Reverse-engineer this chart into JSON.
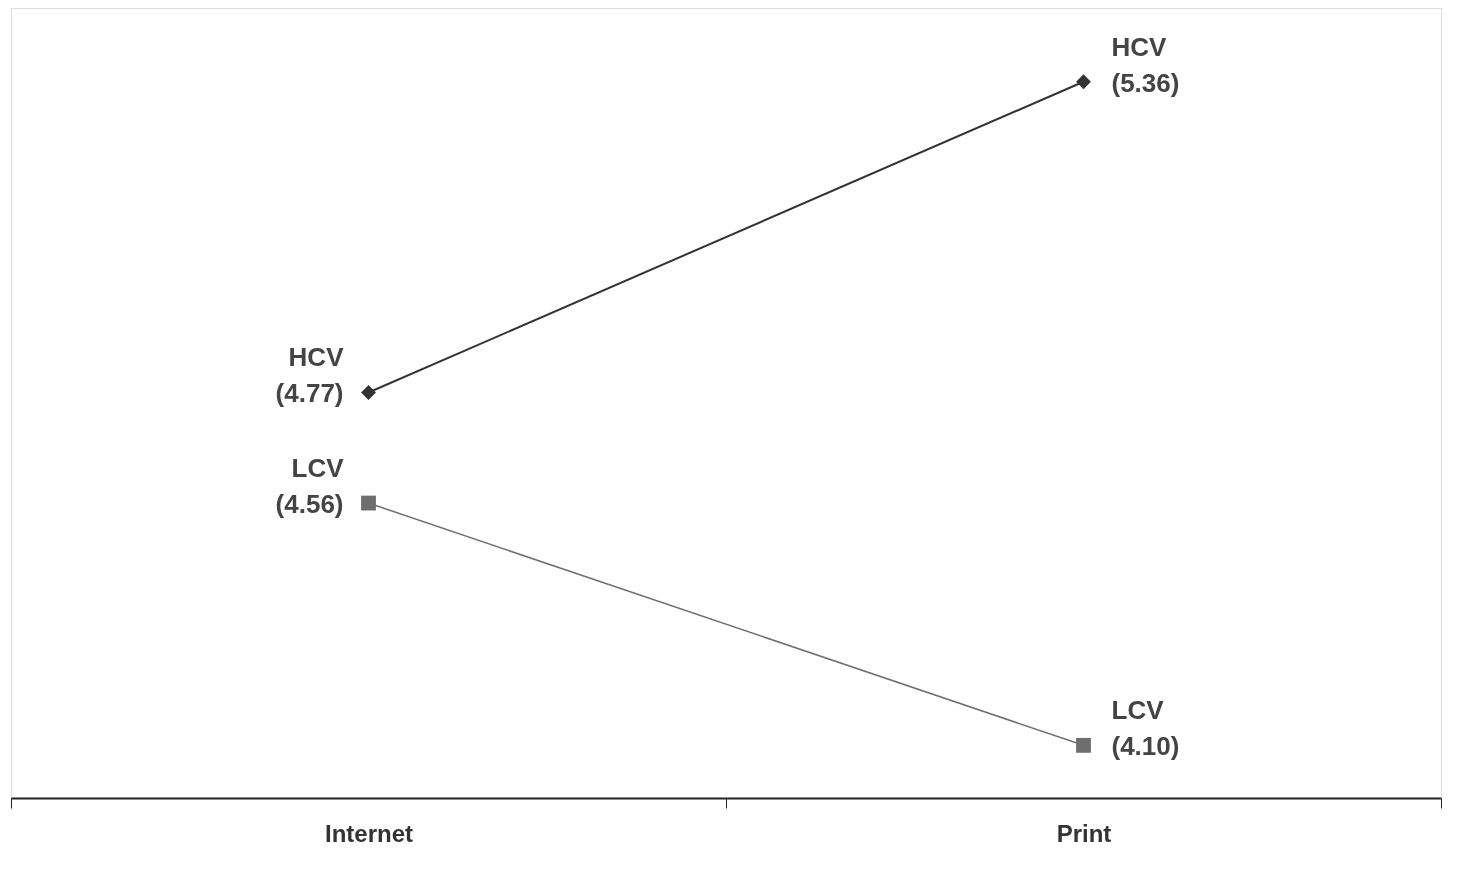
{
  "chart_data": {
    "type": "line",
    "categories": [
      "Internet",
      "Print"
    ],
    "ylim": [
      4.0,
      5.5
    ],
    "tick_labels": "x",
    "grid": false,
    "series": [
      {
        "name": "HCV",
        "color": "#333333",
        "marker": "diamond",
        "values": [
          4.77,
          5.36
        ],
        "value_labels": [
          "(4.77)",
          "(5.36)"
        ]
      },
      {
        "name": "LCV",
        "color": "#6e6e6e",
        "marker": "square",
        "values": [
          4.56,
          4.1
        ],
        "value_labels": [
          "(4.56)",
          "(4.10)"
        ]
      }
    ]
  }
}
